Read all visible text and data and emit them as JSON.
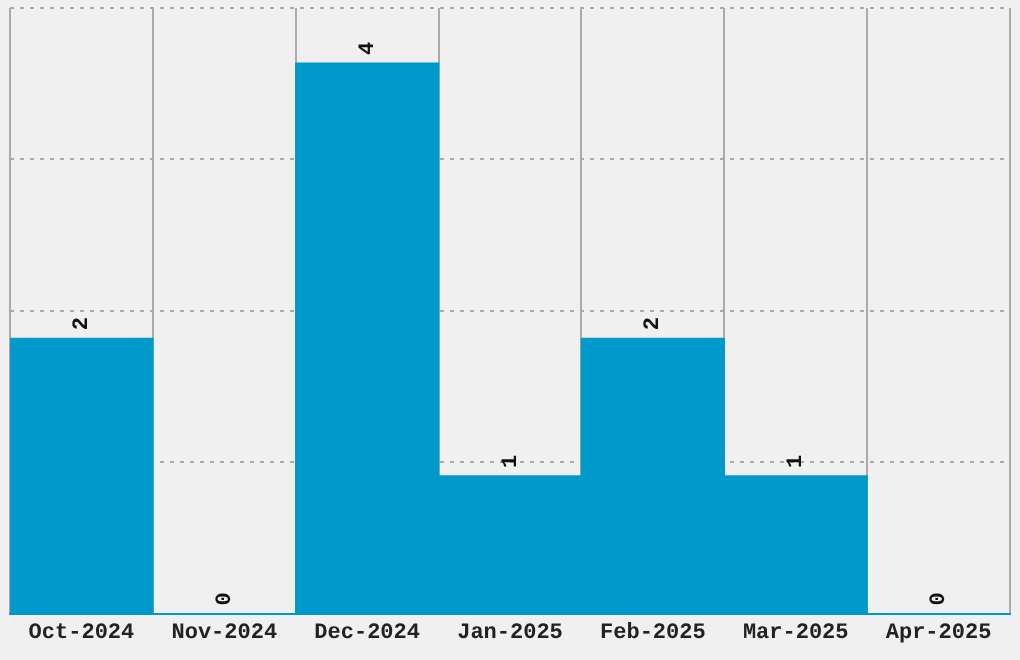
{
  "chart_data": {
    "type": "bar",
    "categories": [
      "Oct-2024",
      "Nov-2024",
      "Dec-2024",
      "Jan-2025",
      "Feb-2025",
      "Mar-2025",
      "Apr-2025"
    ],
    "values": [
      2,
      0,
      4,
      1,
      2,
      1,
      0
    ],
    "color": "#0099cc",
    "ylim": [
      0,
      4.4
    ],
    "yticks": [
      {
        "value": 0,
        "label": null
      },
      {
        "value": 1.1,
        "label": null
      },
      {
        "value": 2.2,
        "label": null
      },
      {
        "value": 3.3,
        "label": null
      },
      {
        "value": 4.4,
        "label": null
      }
    ],
    "tick_labels": "x",
    "grid": true,
    "legend": false,
    "data_labels": true
  }
}
